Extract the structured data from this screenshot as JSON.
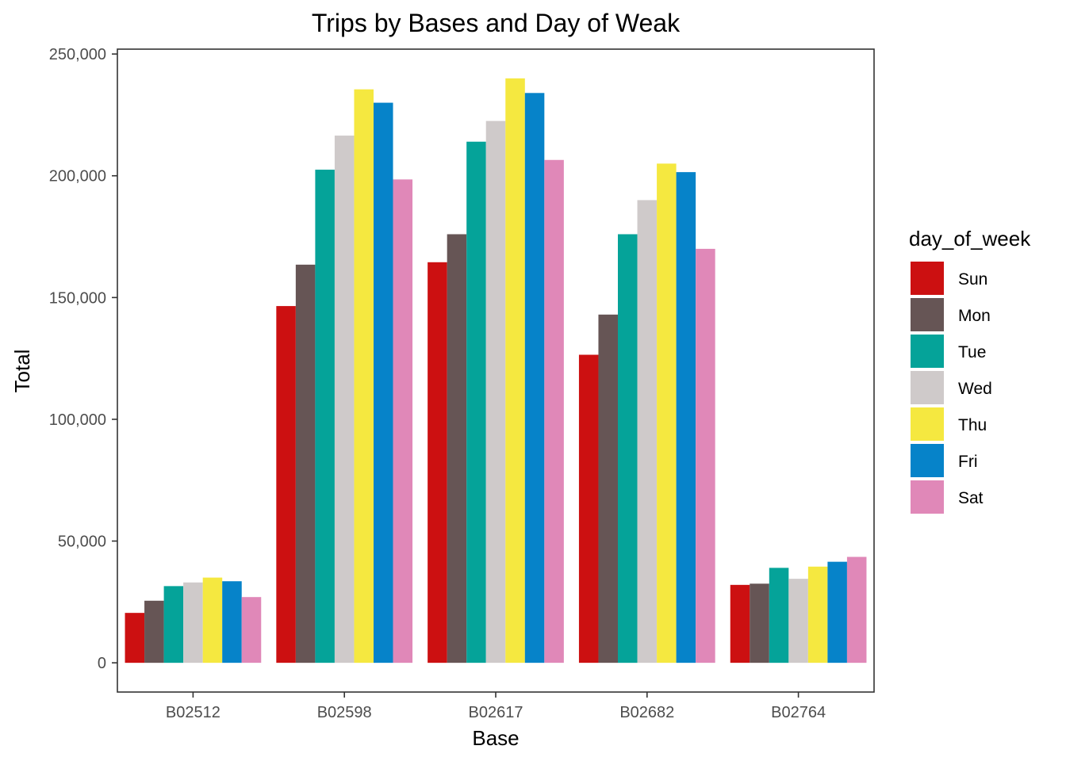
{
  "chart_data": {
    "type": "bar",
    "title": "Trips by Bases and Day of Weak",
    "xlabel": "Base",
    "ylabel": "Total",
    "ylim": [
      -12000,
      252000
    ],
    "yticks": [
      0,
      50000,
      100000,
      150000,
      200000,
      250000
    ],
    "ytick_labels": [
      "0",
      "50,000",
      "100,000",
      "150,000",
      "200,000",
      "250,000"
    ],
    "categories": [
      "B02512",
      "B02598",
      "B02617",
      "B02682",
      "B02764"
    ],
    "legend_title": "day_of_week",
    "legend_position": "right",
    "grid": false,
    "series": [
      {
        "name": "Sun",
        "color": "#CC1011",
        "values": [
          20500,
          146500,
          164500,
          126500,
          32000
        ]
      },
      {
        "name": "Mon",
        "color": "#665555",
        "values": [
          25500,
          163500,
          176000,
          143000,
          32500
        ]
      },
      {
        "name": "Tue",
        "color": "#05A399",
        "values": [
          31500,
          202500,
          214000,
          176000,
          39000
        ]
      },
      {
        "name": "Wed",
        "color": "#CFCACA",
        "values": [
          33000,
          216500,
          222500,
          190000,
          34500
        ]
      },
      {
        "name": "Thu",
        "color": "#F5E840",
        "values": [
          35000,
          235500,
          240000,
          205000,
          39500
        ]
      },
      {
        "name": "Fri",
        "color": "#0683C9",
        "values": [
          33500,
          230000,
          234000,
          201500,
          41500
        ]
      },
      {
        "name": "Sat",
        "color": "#E088B8",
        "values": [
          27000,
          198500,
          206500,
          170000,
          43500
        ]
      }
    ]
  }
}
